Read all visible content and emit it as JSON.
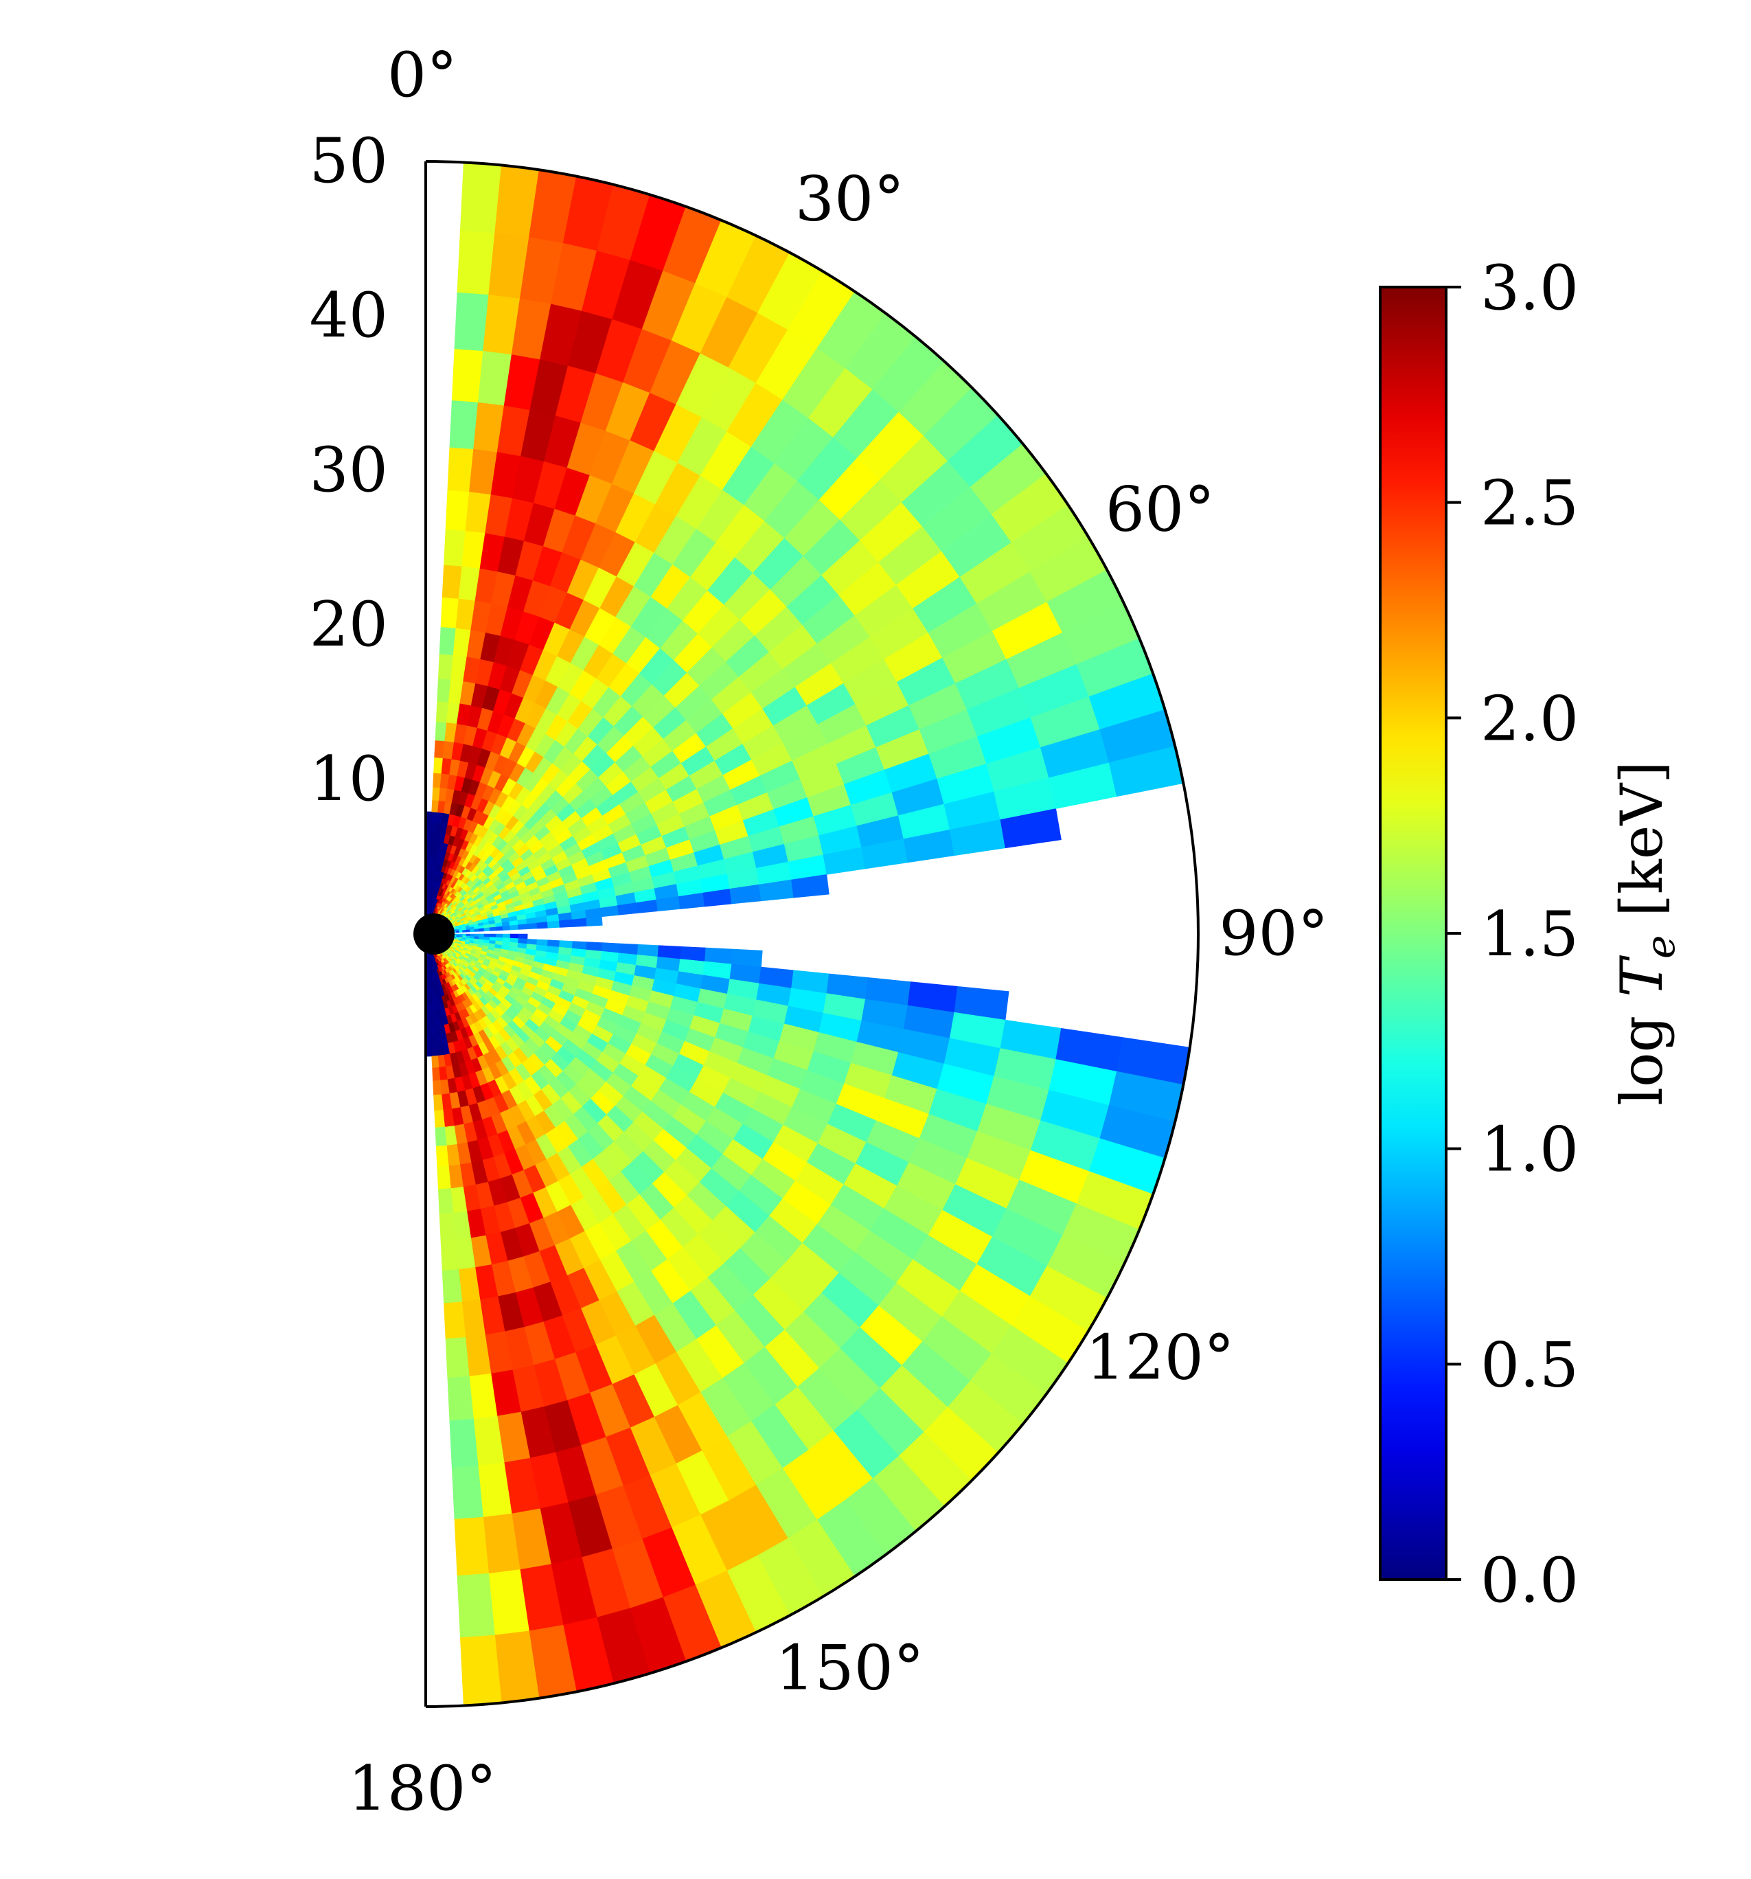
{
  "chart_data": {
    "type": "heatmap",
    "subtype": "polar-wedge",
    "title": "",
    "r_label": "",
    "theta_ticks": [
      "0°",
      "30°",
      "60°",
      "90°",
      "120°",
      "150°",
      "180°"
    ],
    "theta_tick_values": [
      0,
      30,
      60,
      90,
      120,
      150,
      180
    ],
    "r_ticks": [
      "10",
      "20",
      "30",
      "40",
      "50"
    ],
    "r_tick_values": [
      10,
      20,
      30,
      40,
      50
    ],
    "r_range": [
      0,
      50
    ],
    "theta_range": [
      0,
      180
    ],
    "colorbar": {
      "label": "log T_e [keV]",
      "label_main": "log ",
      "label_symbol": "T",
      "label_sub": "e",
      "label_unit": " [keV]",
      "colormap": "jet",
      "vmin": 0.0,
      "vmax": 3.0,
      "ticks": [
        "0.0",
        "0.5",
        "1.0",
        "1.5",
        "2.0",
        "2.5",
        "3.0"
      ],
      "tick_values": [
        0.0,
        0.5,
        1.0,
        1.5,
        2.0,
        2.5,
        3.0
      ]
    },
    "central_object": "black-hole-disc",
    "empty_wedge_deg": [
      80,
      98
    ],
    "structure_description_values": {
      "jet_axis_hot_spine_angles_deg": [
        15,
        165
      ],
      "typical_spine_log_Te": 2.6,
      "typical_outer_log_Te": 1.6,
      "disk_edge_log_Te": 0.7,
      "inner_polar_funnel_log_Te": 0.0
    }
  }
}
